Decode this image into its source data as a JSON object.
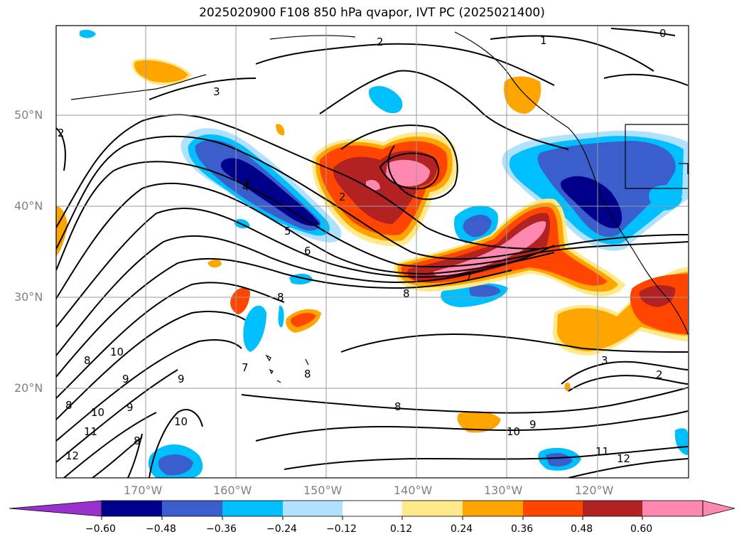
{
  "title": "2025020900 F108 850 hPa qvapor, IVT PC (2025021400)",
  "latitude_labels": [
    "50°N",
    "40°N",
    "30°N",
    "20°N"
  ],
  "longitude_labels": [
    "170°W",
    "160°W",
    "150°W",
    "140°W",
    "130°W",
    "120°W"
  ],
  "colorbar": {
    "tick_labels": [
      "−0.60",
      "−0.48",
      "−0.36",
      "−0.24",
      "−0.12",
      "0.12",
      "0.24",
      "0.36",
      "0.48",
      "0.60"
    ],
    "colors": [
      "#9932cc",
      "#00008b",
      "#3a5fcd",
      "#00bfff",
      "#b0e2ff",
      "#ffffff",
      "#ffe98a",
      "#ffa500",
      "#ff4500",
      "#b22222",
      "#ff88b0"
    ]
  },
  "contour_labels": [
    "2",
    "1",
    "0",
    "3",
    "2",
    "2",
    "4",
    "5",
    "6",
    "7",
    "8",
    "8",
    "10",
    "9",
    "8",
    "7",
    "10",
    "9",
    "9",
    "11",
    "10",
    "8",
    "12",
    "8",
    "8",
    "9",
    "10",
    "11",
    "12",
    "3",
    "2",
    "7",
    "8"
  ]
}
